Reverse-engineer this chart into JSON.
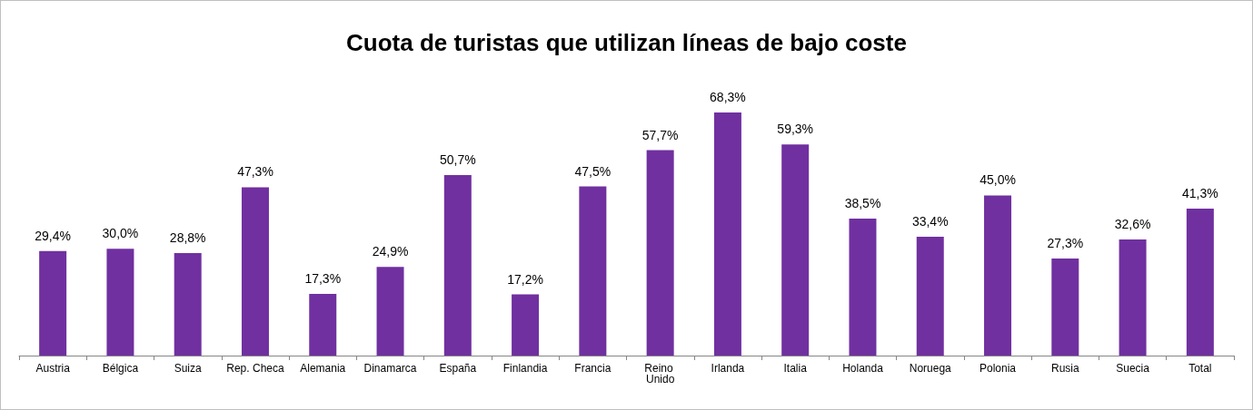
{
  "chart_data": {
    "type": "bar",
    "title": "Cuota de turistas que utilizan líneas de bajo coste",
    "categories": [
      "Austria",
      "Bélgica",
      "Suiza",
      "Rep. Checa",
      "Alemania",
      "Dinamarca",
      "España",
      "Finlandia",
      "Francia",
      "Reino Unido",
      "Irlanda",
      "Italia",
      "Holanda",
      "Noruega",
      "Polonia",
      "Rusia",
      "Suecia",
      "Total"
    ],
    "values": [
      29.4,
      30.0,
      28.8,
      47.3,
      17.3,
      24.9,
      50.7,
      17.2,
      47.5,
      57.7,
      68.3,
      59.3,
      38.5,
      33.4,
      45.0,
      27.3,
      32.6,
      41.3
    ],
    "value_labels": [
      "29,4%",
      "30,0%",
      "28,8%",
      "47,3%",
      "17,3%",
      "24,9%",
      "50,7%",
      "17,2%",
      "47,5%",
      "57,7%",
      "68,3%",
      "59,3%",
      "38,5%",
      "33,4%",
      "45,0%",
      "27,3%",
      "32,6%",
      "41,3%"
    ],
    "color": "#7030a0",
    "tick_labels": "x"
  }
}
